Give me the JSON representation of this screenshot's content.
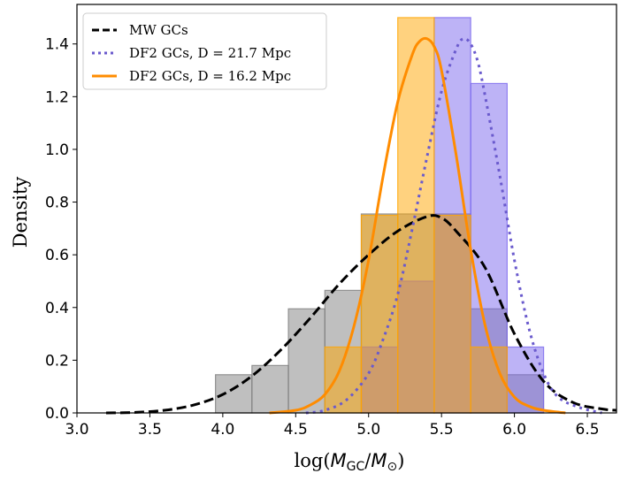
{
  "chart_data": {
    "type": "bar",
    "xlabel_prefix": "log(",
    "xlabel_num": "M",
    "xlabel_num_sub": "GC",
    "xlabel_sep": "/",
    "xlabel_den": "M",
    "xlabel_den_sub": "⊙",
    "xlabel_suffix": ")",
    "ylabel": "Density",
    "xlim": [
      3.0,
      6.7
    ],
    "ylim": [
      0.0,
      1.55
    ],
    "xticks": [
      "3.0",
      "3.5",
      "4.0",
      "4.5",
      "5.0",
      "5.5",
      "6.0",
      "6.5"
    ],
    "yticks": [
      "0.0",
      "0.2",
      "0.4",
      "0.6",
      "0.8",
      "1.0",
      "1.2",
      "1.4"
    ],
    "legend_position": "upper left",
    "histograms": [
      {
        "name": "MW GCs",
        "color": "#808080",
        "edges": [
          3.95,
          4.2,
          4.45,
          4.7,
          4.95,
          5.2,
          5.45,
          5.7,
          5.95,
          6.2
        ],
        "values": [
          0.145,
          0.18,
          0.395,
          0.465,
          0.755,
          0.755,
          0.755,
          0.395,
          0.145
        ]
      },
      {
        "name": "DF2 GCs, D = 21.7 Mpc",
        "color": "#7b68ee",
        "edges": [
          4.95,
          5.2,
          5.45,
          5.7,
          5.95,
          6.2
        ],
        "values": [
          0.25,
          0.5,
          1.5,
          1.25,
          0.25
        ]
      },
      {
        "name": "DF2 GCs, D = 16.2 Mpc",
        "color": "#ffa500",
        "edges": [
          4.7,
          4.95,
          5.2,
          5.45,
          5.7,
          5.95
        ],
        "values": [
          0.25,
          0.75,
          1.5,
          0.75,
          0.25
        ]
      }
    ],
    "curves": [
      {
        "name": "MW GCs",
        "color": "#000000",
        "style": "dashed",
        "points": [
          [
            3.2,
            0.0
          ],
          [
            3.4,
            0.002
          ],
          [
            3.6,
            0.01
          ],
          [
            3.8,
            0.03
          ],
          [
            4.0,
            0.07
          ],
          [
            4.2,
            0.14
          ],
          [
            4.4,
            0.24
          ],
          [
            4.6,
            0.36
          ],
          [
            4.8,
            0.49
          ],
          [
            5.0,
            0.6
          ],
          [
            5.2,
            0.69
          ],
          [
            5.4,
            0.745
          ],
          [
            5.5,
            0.74
          ],
          [
            5.6,
            0.69
          ],
          [
            5.8,
            0.55
          ],
          [
            6.0,
            0.3
          ],
          [
            6.2,
            0.12
          ],
          [
            6.4,
            0.04
          ],
          [
            6.6,
            0.015
          ],
          [
            6.7,
            0.01
          ]
        ]
      },
      {
        "name": "DF2 GCs, D = 21.7 Mpc",
        "color": "#6a5acd",
        "style": "dotted",
        "points": [
          [
            4.57,
            0.0
          ],
          [
            4.7,
            0.01
          ],
          [
            4.85,
            0.05
          ],
          [
            5.0,
            0.15
          ],
          [
            5.1,
            0.28
          ],
          [
            5.2,
            0.45
          ],
          [
            5.3,
            0.7
          ],
          [
            5.4,
            0.97
          ],
          [
            5.5,
            1.22
          ],
          [
            5.6,
            1.38
          ],
          [
            5.65,
            1.42
          ],
          [
            5.7,
            1.4
          ],
          [
            5.75,
            1.33
          ],
          [
            5.8,
            1.2
          ],
          [
            5.9,
            0.9
          ],
          [
            6.0,
            0.58
          ],
          [
            6.1,
            0.32
          ],
          [
            6.2,
            0.15
          ],
          [
            6.3,
            0.06
          ],
          [
            6.45,
            0.02
          ],
          [
            6.6,
            0.0
          ]
        ]
      },
      {
        "name": "DF2 GCs, D = 16.2 Mpc",
        "color": "#ff8c00",
        "style": "solid",
        "points": [
          [
            4.32,
            0.0
          ],
          [
            4.5,
            0.01
          ],
          [
            4.6,
            0.03
          ],
          [
            4.7,
            0.07
          ],
          [
            4.8,
            0.16
          ],
          [
            4.9,
            0.33
          ],
          [
            5.0,
            0.58
          ],
          [
            5.1,
            0.9
          ],
          [
            5.2,
            1.18
          ],
          [
            5.3,
            1.36
          ],
          [
            5.35,
            1.41
          ],
          [
            5.4,
            1.42
          ],
          [
            5.45,
            1.39
          ],
          [
            5.5,
            1.3
          ],
          [
            5.6,
            0.98
          ],
          [
            5.7,
            0.62
          ],
          [
            5.8,
            0.33
          ],
          [
            5.9,
            0.15
          ],
          [
            6.0,
            0.06
          ],
          [
            6.1,
            0.025
          ],
          [
            6.2,
            0.01
          ],
          [
            6.35,
            0.0
          ]
        ]
      }
    ]
  }
}
